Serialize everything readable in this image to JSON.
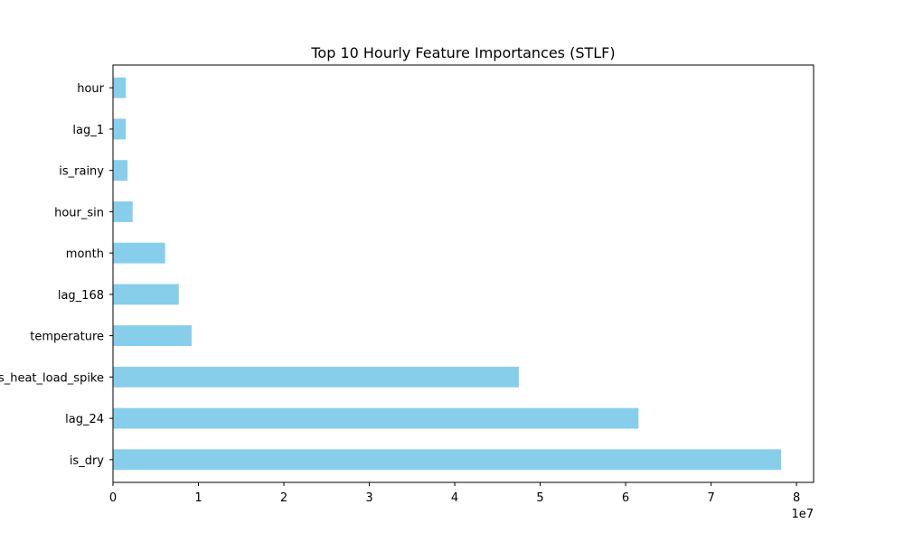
{
  "chart_data": {
    "type": "bar",
    "orientation": "horizontal",
    "title": "Top 10 Hourly Feature Importances (STLF)",
    "xlabel": "",
    "ylabel": "",
    "x_scale_label": "1e7",
    "xlim": [
      0,
      82000000
    ],
    "x_ticks": [
      0,
      10000000,
      20000000,
      30000000,
      40000000,
      50000000,
      60000000,
      70000000,
      80000000
    ],
    "x_tick_labels": [
      "0",
      "1",
      "2",
      "3",
      "4",
      "5",
      "6",
      "7",
      "8"
    ],
    "categories": [
      "hour",
      "lag_1",
      "is_rainy",
      "hour_sin",
      "month",
      "lag_168",
      "temperature",
      "is_heat_load_spike",
      "lag_24",
      "is_dry"
    ],
    "values": [
      1500000,
      1500000,
      1700000,
      2300000,
      6100000,
      7700000,
      9200000,
      47500000,
      61500000,
      78200000
    ],
    "bar_color": "#87ceeb",
    "grid": false,
    "legend": "none"
  }
}
